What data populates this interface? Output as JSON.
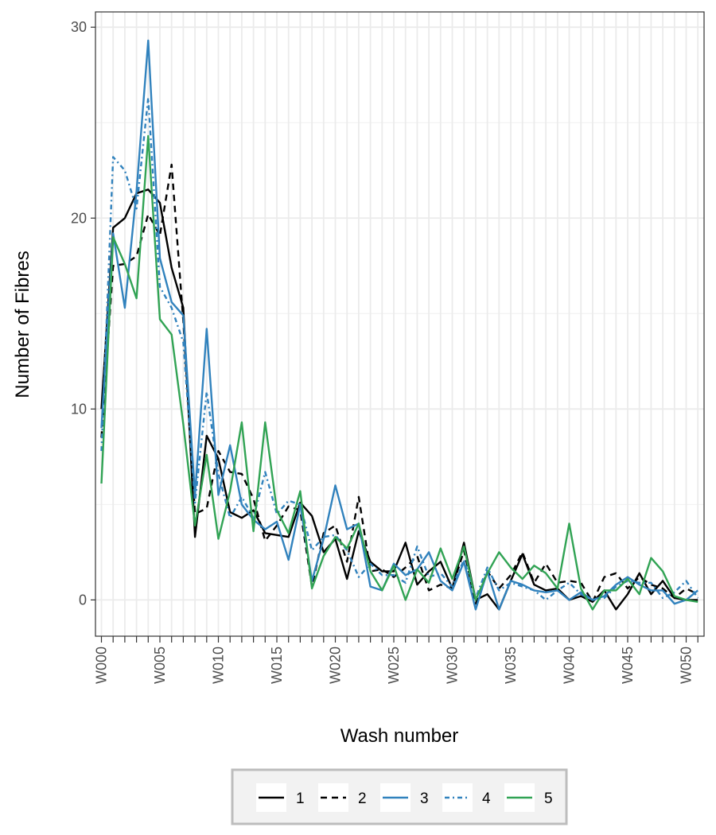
{
  "chart_data": {
    "type": "line",
    "xlabel": "Wash number",
    "ylabel": "Number of Fibres",
    "x": [
      "W000",
      "W001",
      "W002",
      "W003",
      "W004",
      "W005",
      "W006",
      "W007",
      "W008",
      "W009",
      "W010",
      "W011",
      "W012",
      "W013",
      "W014",
      "W015",
      "W016",
      "W017",
      "W018",
      "W019",
      "W020",
      "W021",
      "W022",
      "W023",
      "W024",
      "W025",
      "W026",
      "W027",
      "W028",
      "W029",
      "W030",
      "W031",
      "W032",
      "W033",
      "W034",
      "W035",
      "W036",
      "W037",
      "W038",
      "W039",
      "W040",
      "W041",
      "W042",
      "W043",
      "W044",
      "W045",
      "W046",
      "W047",
      "W048",
      "W049",
      "W050",
      "W051"
    ],
    "x_tick_labels": [
      "W000",
      "W005",
      "W010",
      "W015",
      "W020",
      "W025",
      "W030",
      "W035",
      "W040",
      "W045",
      "W050"
    ],
    "y_ticks": [
      0,
      10,
      20,
      30
    ],
    "y_tick_labels": [
      "0",
      "10",
      "20",
      "30"
    ],
    "ylim": [
      -1.9,
      30.8
    ],
    "grid": true,
    "legend_position": "bottom",
    "series": [
      {
        "name": "1",
        "color": "#000000",
        "dash": "solid",
        "values": [
          10,
          19.5,
          20,
          21.3,
          21.5,
          20.8,
          17.4,
          15.3,
          3.3,
          8.6,
          7.4,
          4.6,
          4.3,
          4.7,
          3.5,
          3.4,
          3.3,
          5.1,
          4.4,
          2.5,
          3.2,
          1.1,
          3.6,
          2.0,
          1.5,
          1.5,
          3.0,
          0.8,
          1.5,
          2.0,
          0.6,
          3.0,
          0.0,
          0.3,
          -0.5,
          1.0,
          2.4,
          0.8,
          0.5,
          0.6,
          0.0,
          0.2,
          -0.1,
          0.5,
          -0.5,
          0.3,
          1.4,
          0.3,
          1.0,
          0.1,
          0.0,
          0.0
        ]
      },
      {
        "name": "2",
        "color": "#000000",
        "dash": "8,6",
        "values": [
          8.5,
          17.5,
          17.6,
          18.0,
          20.2,
          19.1,
          22.8,
          14.6,
          4.5,
          4.8,
          7.8,
          6.7,
          6.6,
          5.3,
          3.1,
          3.9,
          4.9,
          4.7,
          0.7,
          3.5,
          3.9,
          2.0,
          5.4,
          1.5,
          1.6,
          1.2,
          1.7,
          2.3,
          0.5,
          0.8,
          0.6,
          2.6,
          -0.2,
          1.5,
          0.6,
          1.3,
          2.5,
          0.9,
          1.9,
          0.9,
          1.0,
          0.9,
          -0.1,
          1.2,
          1.4,
          0.6,
          1.2,
          0.8,
          0.6,
          0.1,
          0.6,
          0.3
        ]
      },
      {
        "name": "3",
        "color": "#3182bd",
        "dash": "solid",
        "values": [
          9,
          19.2,
          15.3,
          21.4,
          29.3,
          17.9,
          15.6,
          14.9,
          5.5,
          14.2,
          5.5,
          8.1,
          5.0,
          4.2,
          3.7,
          4.1,
          2.1,
          5.0,
          1.0,
          3.2,
          6.0,
          3.7,
          4.0,
          0.7,
          0.5,
          1.9,
          1.3,
          1.6,
          2.5,
          1.0,
          0.5,
          2.0,
          -0.5,
          1.5,
          -0.5,
          1.0,
          0.8,
          0.5,
          0.4,
          0.5,
          0.0,
          0.4,
          0.0,
          0.2,
          0.8,
          1.2,
          0.8,
          0.5,
          0.5,
          -0.2,
          0.0,
          0.5
        ]
      },
      {
        "name": "4",
        "color": "#3182bd",
        "dash": "6,4,2,4",
        "values": [
          7.8,
          23.2,
          22.5,
          20.5,
          26.3,
          16.4,
          15.3,
          13.5,
          5.1,
          10.9,
          6.6,
          4.3,
          5.4,
          4.3,
          6.7,
          4.5,
          5.2,
          5.0,
          2.6,
          3.3,
          3.4,
          2.6,
          1.2,
          1.9,
          1.3,
          1.3,
          0.9,
          2.8,
          1.2,
          1.4,
          0.7,
          2.1,
          0.1,
          1.7,
          0.5,
          0.9,
          0.7,
          0.5,
          0.0,
          0.5,
          0.9,
          0.3,
          0.0,
          0.1,
          0.7,
          1.0,
          0.9,
          0.9,
          0.1,
          0.4,
          1.0,
          0.1
        ]
      },
      {
        "name": "5",
        "color": "#31a354",
        "dash": "solid",
        "values": [
          6.1,
          19.0,
          17.6,
          15.8,
          24.3,
          14.7,
          13.9,
          9.2,
          3.9,
          7.6,
          3.2,
          5.7,
          9.3,
          3.6,
          9.3,
          4.7,
          3.5,
          5.7,
          0.6,
          2.3,
          3.3,
          2.7,
          4.0,
          1.5,
          0.5,
          1.8,
          0.0,
          1.6,
          0.9,
          2.7,
          1.1,
          2.8,
          0.0,
          1.4,
          2.5,
          1.7,
          1.1,
          1.8,
          1.4,
          0.6,
          4.0,
          0.6,
          -0.5,
          0.5,
          0.5,
          1.1,
          0.3,
          2.2,
          1.5,
          0.2,
          0.0,
          -0.1
        ]
      }
    ]
  }
}
